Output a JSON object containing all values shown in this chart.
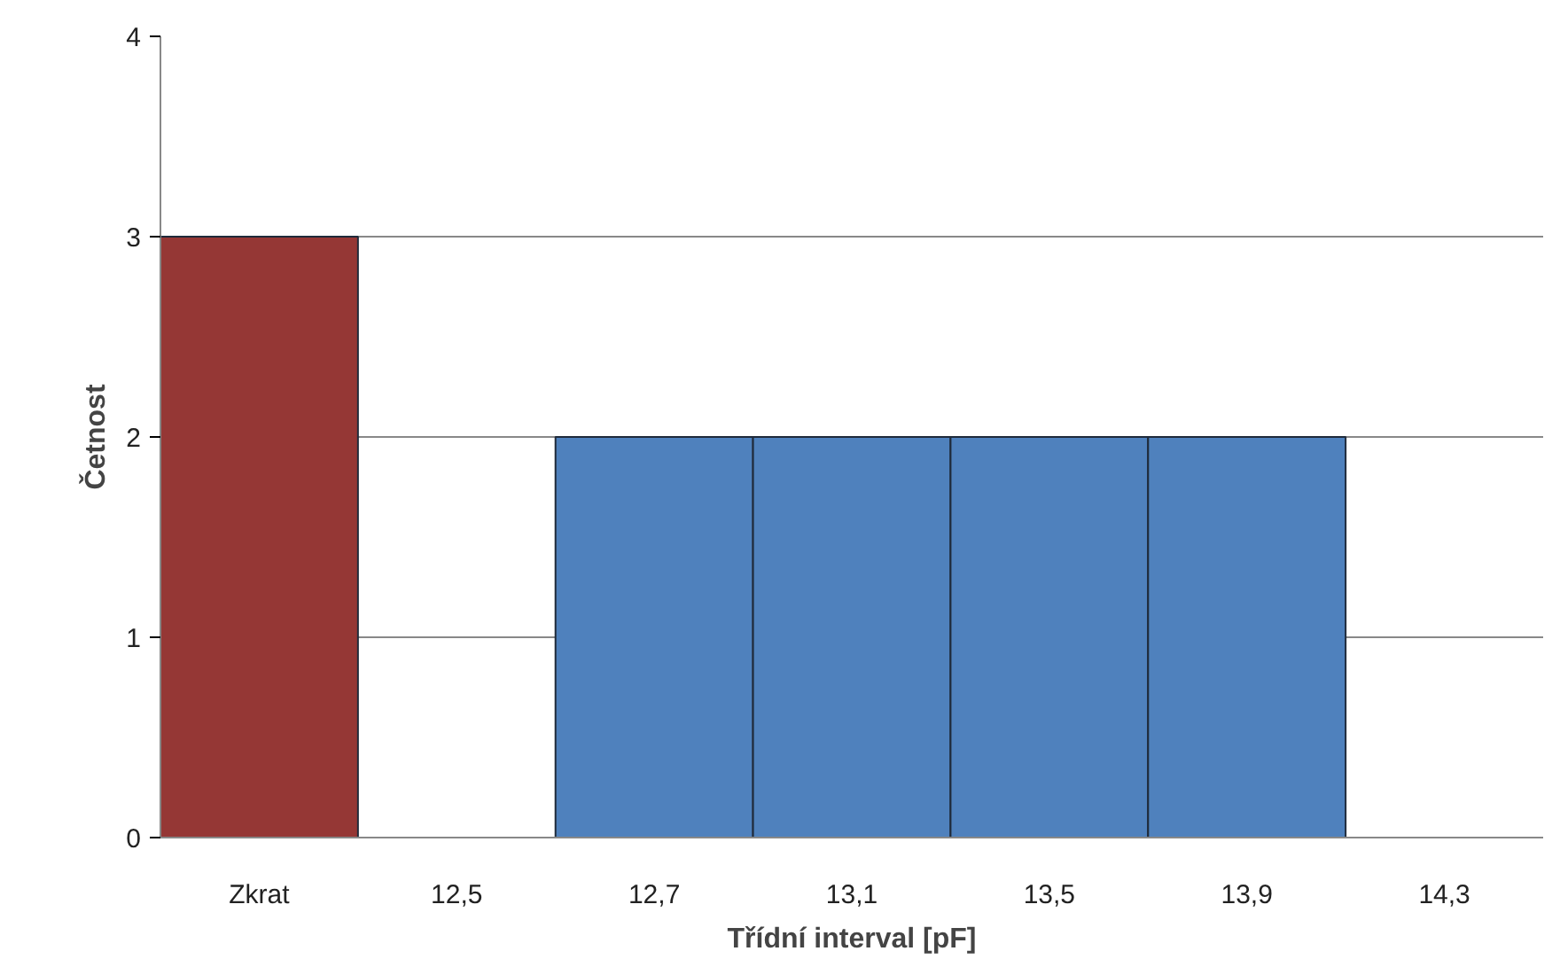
{
  "chart_data": {
    "type": "bar",
    "xlabel": "Třídní interval [pF]",
    "ylabel": "Četnost",
    "categories": [
      "Zkrat",
      "12,5",
      "12,7",
      "13,1",
      "13,5",
      "13,9",
      "14,3"
    ],
    "values": [
      3,
      0,
      2,
      2,
      2,
      2,
      0
    ],
    "colors": [
      "#953735",
      "#4f81bd",
      "#4f81bd",
      "#4f81bd",
      "#4f81bd",
      "#4f81bd",
      "#4f81bd"
    ],
    "ylim": [
      0,
      4
    ],
    "yticks": [
      0,
      1,
      2,
      3,
      4
    ],
    "grid": "y"
  }
}
